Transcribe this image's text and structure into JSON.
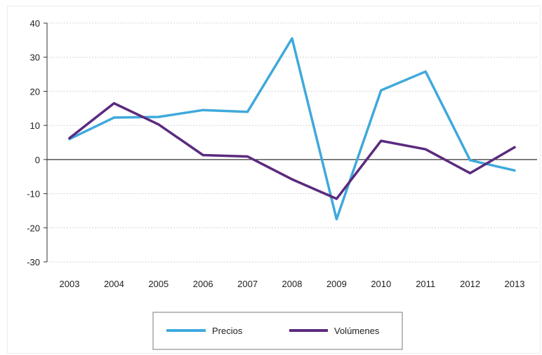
{
  "chart_data": {
    "type": "line",
    "categories": [
      "2003",
      "2004",
      "2005",
      "2006",
      "2007",
      "2008",
      "2009",
      "2010",
      "2011",
      "2012",
      "2013"
    ],
    "series": [
      {
        "name": "Precios",
        "color": "#3fa9dc",
        "values": [
          6,
          12.3,
          12.5,
          14.5,
          14,
          35.5,
          -17.5,
          20.3,
          25.8,
          -0.2,
          -3.2
        ]
      },
      {
        "name": "Volúmenes",
        "color": "#5b2a7e",
        "values": [
          6.3,
          16.5,
          10.3,
          1.3,
          0.9,
          -5.8,
          -11.5,
          5.5,
          3,
          -4,
          3.6
        ]
      }
    ],
    "ylim": [
      -30,
      40
    ],
    "yticks": [
      "40",
      "30",
      "20",
      "10",
      "0",
      "-10",
      "-20",
      "-30"
    ],
    "grid": true,
    "legend_position": "bottom"
  }
}
